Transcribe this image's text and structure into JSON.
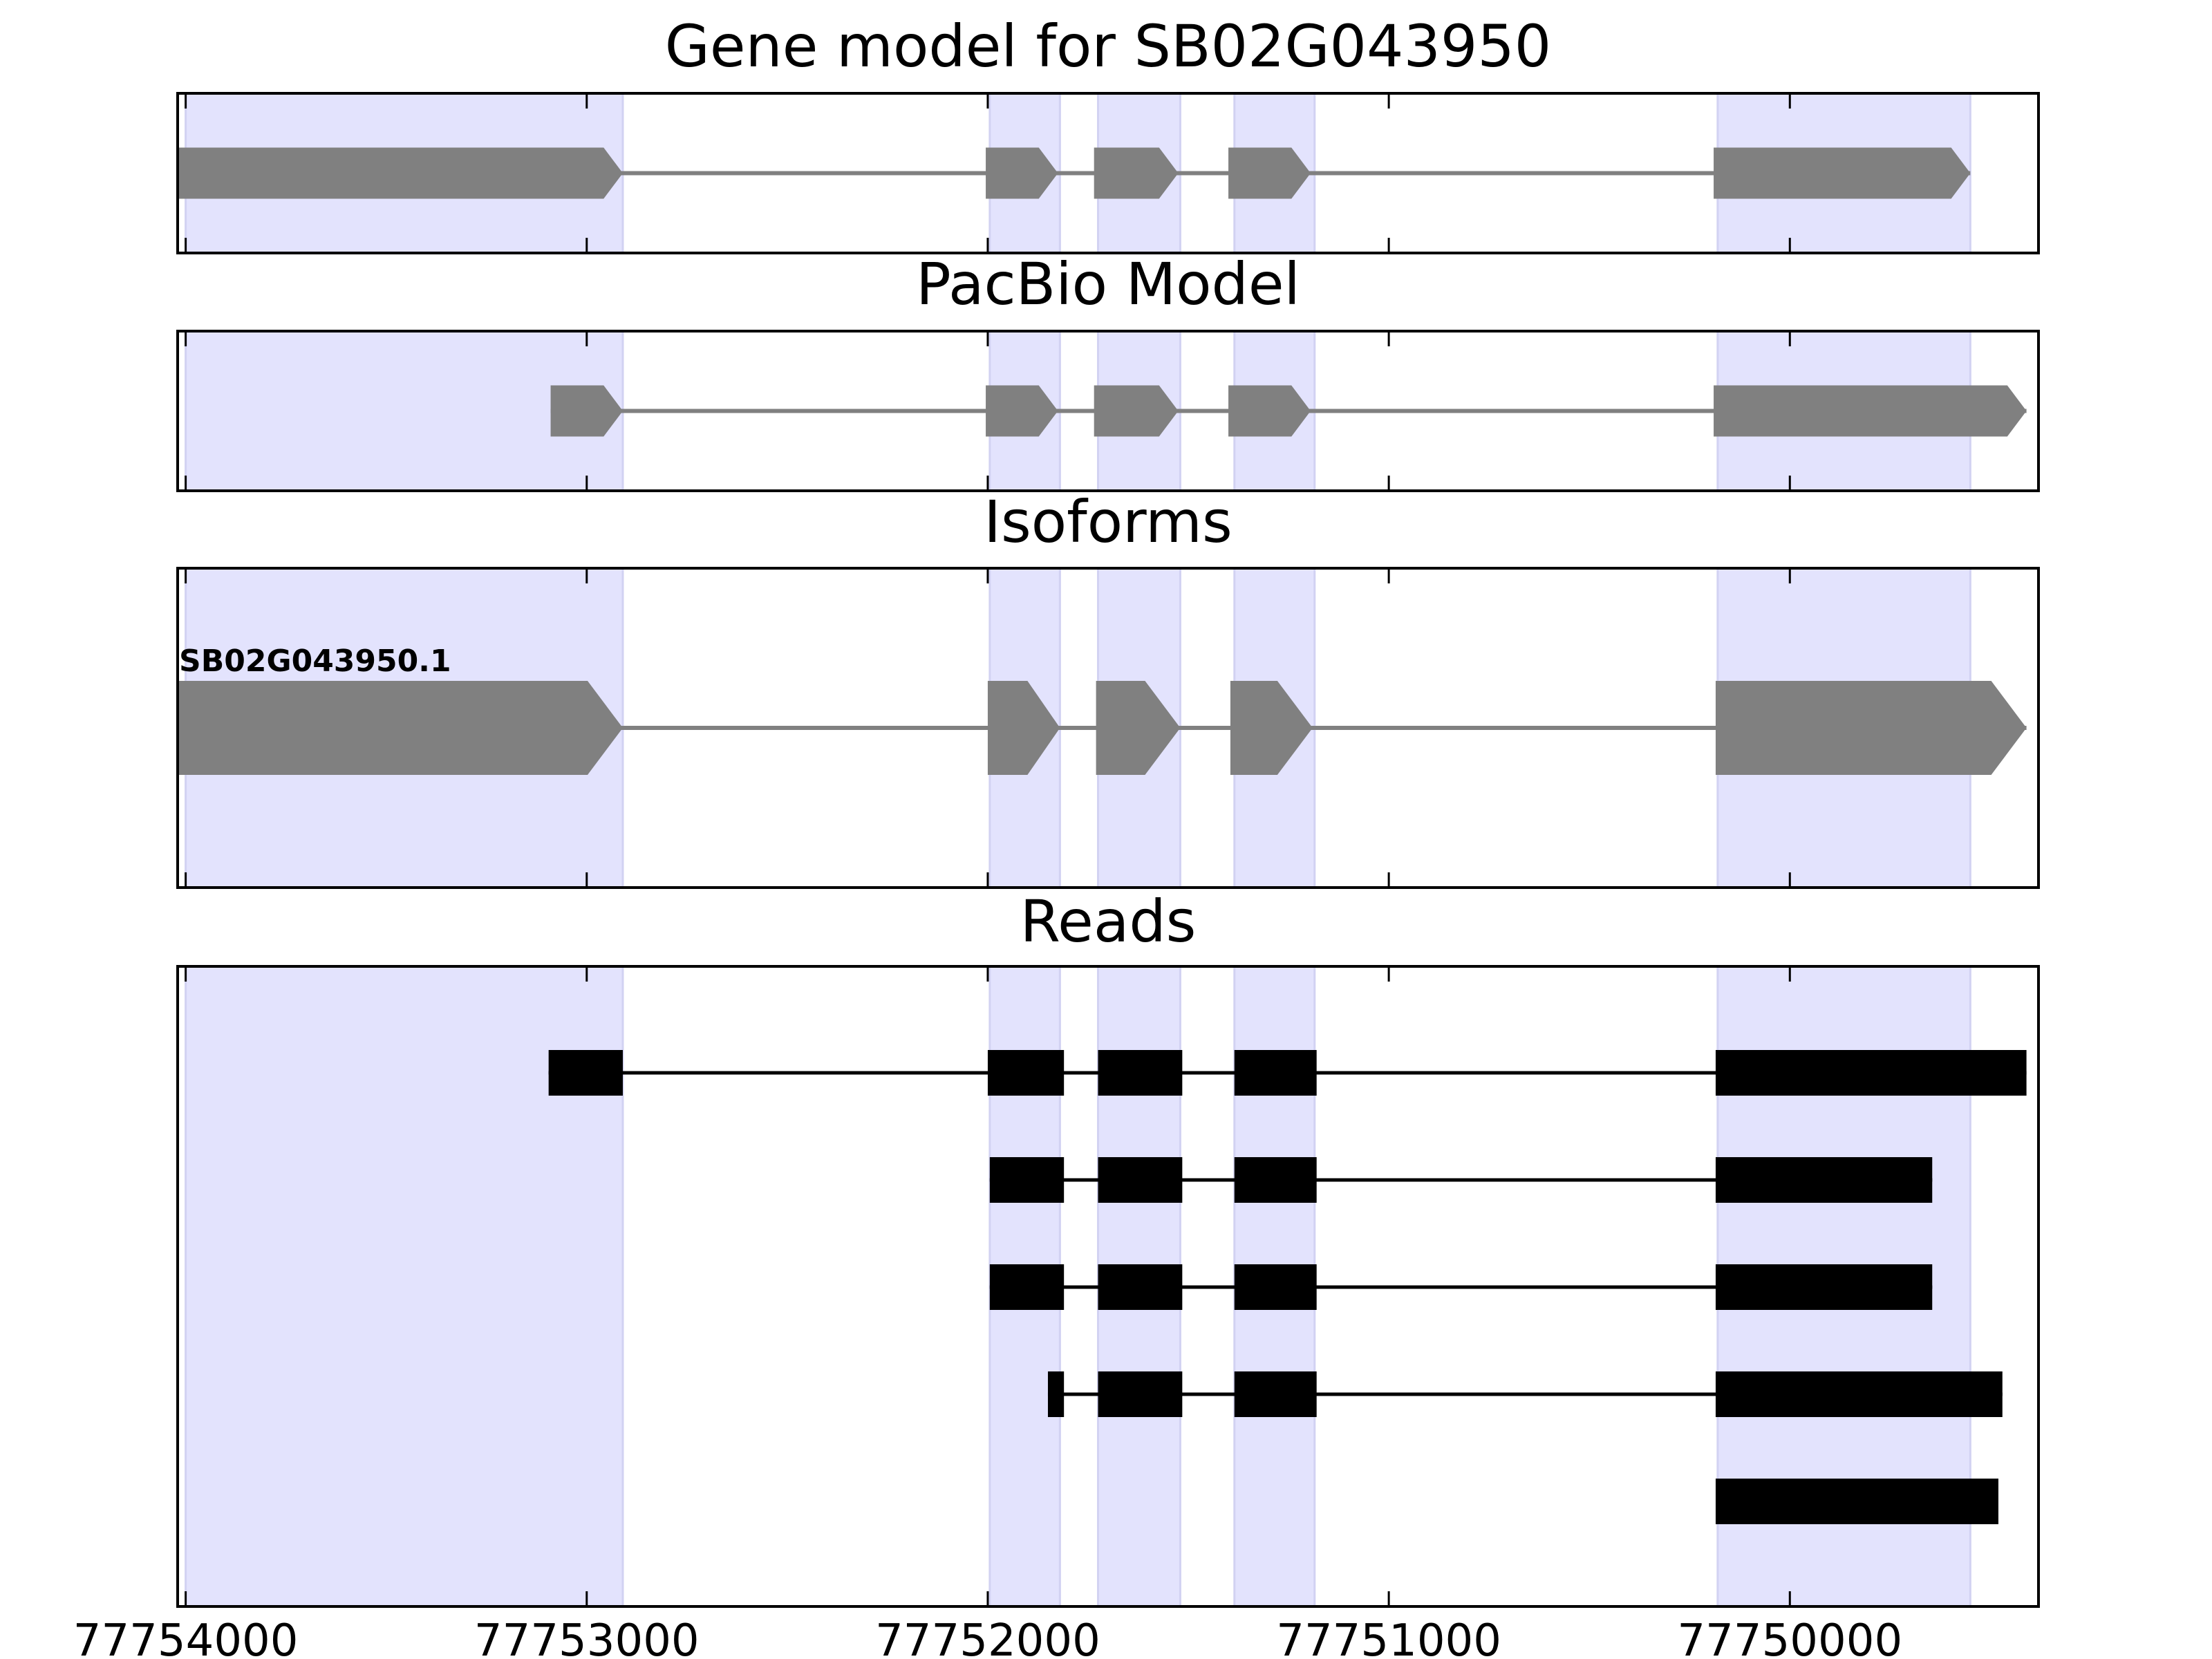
{
  "chart_data": {
    "type": "gene-model-tracks",
    "x_axis": {
      "direction": "reversed",
      "range": [
        77754020,
        77749380
      ],
      "ticks": [
        {
          "value": 77754000,
          "label": "77754000"
        },
        {
          "value": 77753000,
          "label": "77753000"
        },
        {
          "value": 77752000,
          "label": "77752000"
        },
        {
          "value": 77751000,
          "label": "77751000"
        },
        {
          "value": 77750000,
          "label": "77750000"
        }
      ]
    },
    "highlight_color": "#e3e3fd",
    "exon_color": "#808080",
    "read_color": "#000000",
    "highlight_regions": [
      [
        77752910,
        77754000
      ],
      [
        77751820,
        77751995
      ],
      [
        77751520,
        77751725
      ],
      [
        77751185,
        77751385
      ],
      [
        77749550,
        77750180
      ]
    ],
    "panels": [
      {
        "key": "gene_model",
        "title": "Gene model for SB02G043950",
        "strand": "-",
        "transcripts": [
          {
            "label": "",
            "exons": [
              [
                77752910,
                77754020
              ],
              [
                77751825,
                77752005
              ],
              [
                77751525,
                77751735
              ],
              [
                77751195,
                77751400
              ],
              [
                77749550,
                77750190
              ]
            ]
          }
        ]
      },
      {
        "key": "pacbio_model",
        "title": "PacBio Model",
        "strand": "-",
        "transcripts": [
          {
            "label": "",
            "exons": [
              [
                77752910,
                77753090
              ],
              [
                77751825,
                77752005
              ],
              [
                77751525,
                77751735
              ],
              [
                77751195,
                77751400
              ],
              [
                77749410,
                77750190
              ]
            ]
          }
        ]
      },
      {
        "key": "isoforms",
        "title": "Isoforms",
        "strand": "-",
        "transcripts": [
          {
            "label": "SB02G043950.1",
            "exons": [
              [
                77752910,
                77754020
              ],
              [
                77751820,
                77752000
              ],
              [
                77751520,
                77751730
              ],
              [
                77751190,
                77751395
              ],
              [
                77749410,
                77750185
              ]
            ]
          }
        ]
      },
      {
        "key": "reads",
        "title": "Reads",
        "reads": [
          {
            "exons": [
              [
                77752910,
                77753095
              ],
              [
                77751810,
                77752000
              ],
              [
                77751515,
                77751725
              ],
              [
                77751180,
                77751385
              ],
              [
                77749410,
                77750185
              ]
            ]
          },
          {
            "exons": [
              [
                77751810,
                77751995
              ],
              [
                77751515,
                77751725
              ],
              [
                77751180,
                77751385
              ],
              [
                77749645,
                77750185
              ]
            ]
          },
          {
            "exons": [
              [
                77751810,
                77751995
              ],
              [
                77751515,
                77751725
              ],
              [
                77751180,
                77751385
              ],
              [
                77749645,
                77750185
              ]
            ]
          },
          {
            "exons": [
              [
                77751810,
                77751850
              ],
              [
                77751515,
                77751725
              ],
              [
                77751180,
                77751385
              ],
              [
                77749470,
                77750185
              ]
            ]
          },
          {
            "exons": [
              [
                77749480,
                77750185
              ]
            ]
          }
        ]
      }
    ]
  }
}
